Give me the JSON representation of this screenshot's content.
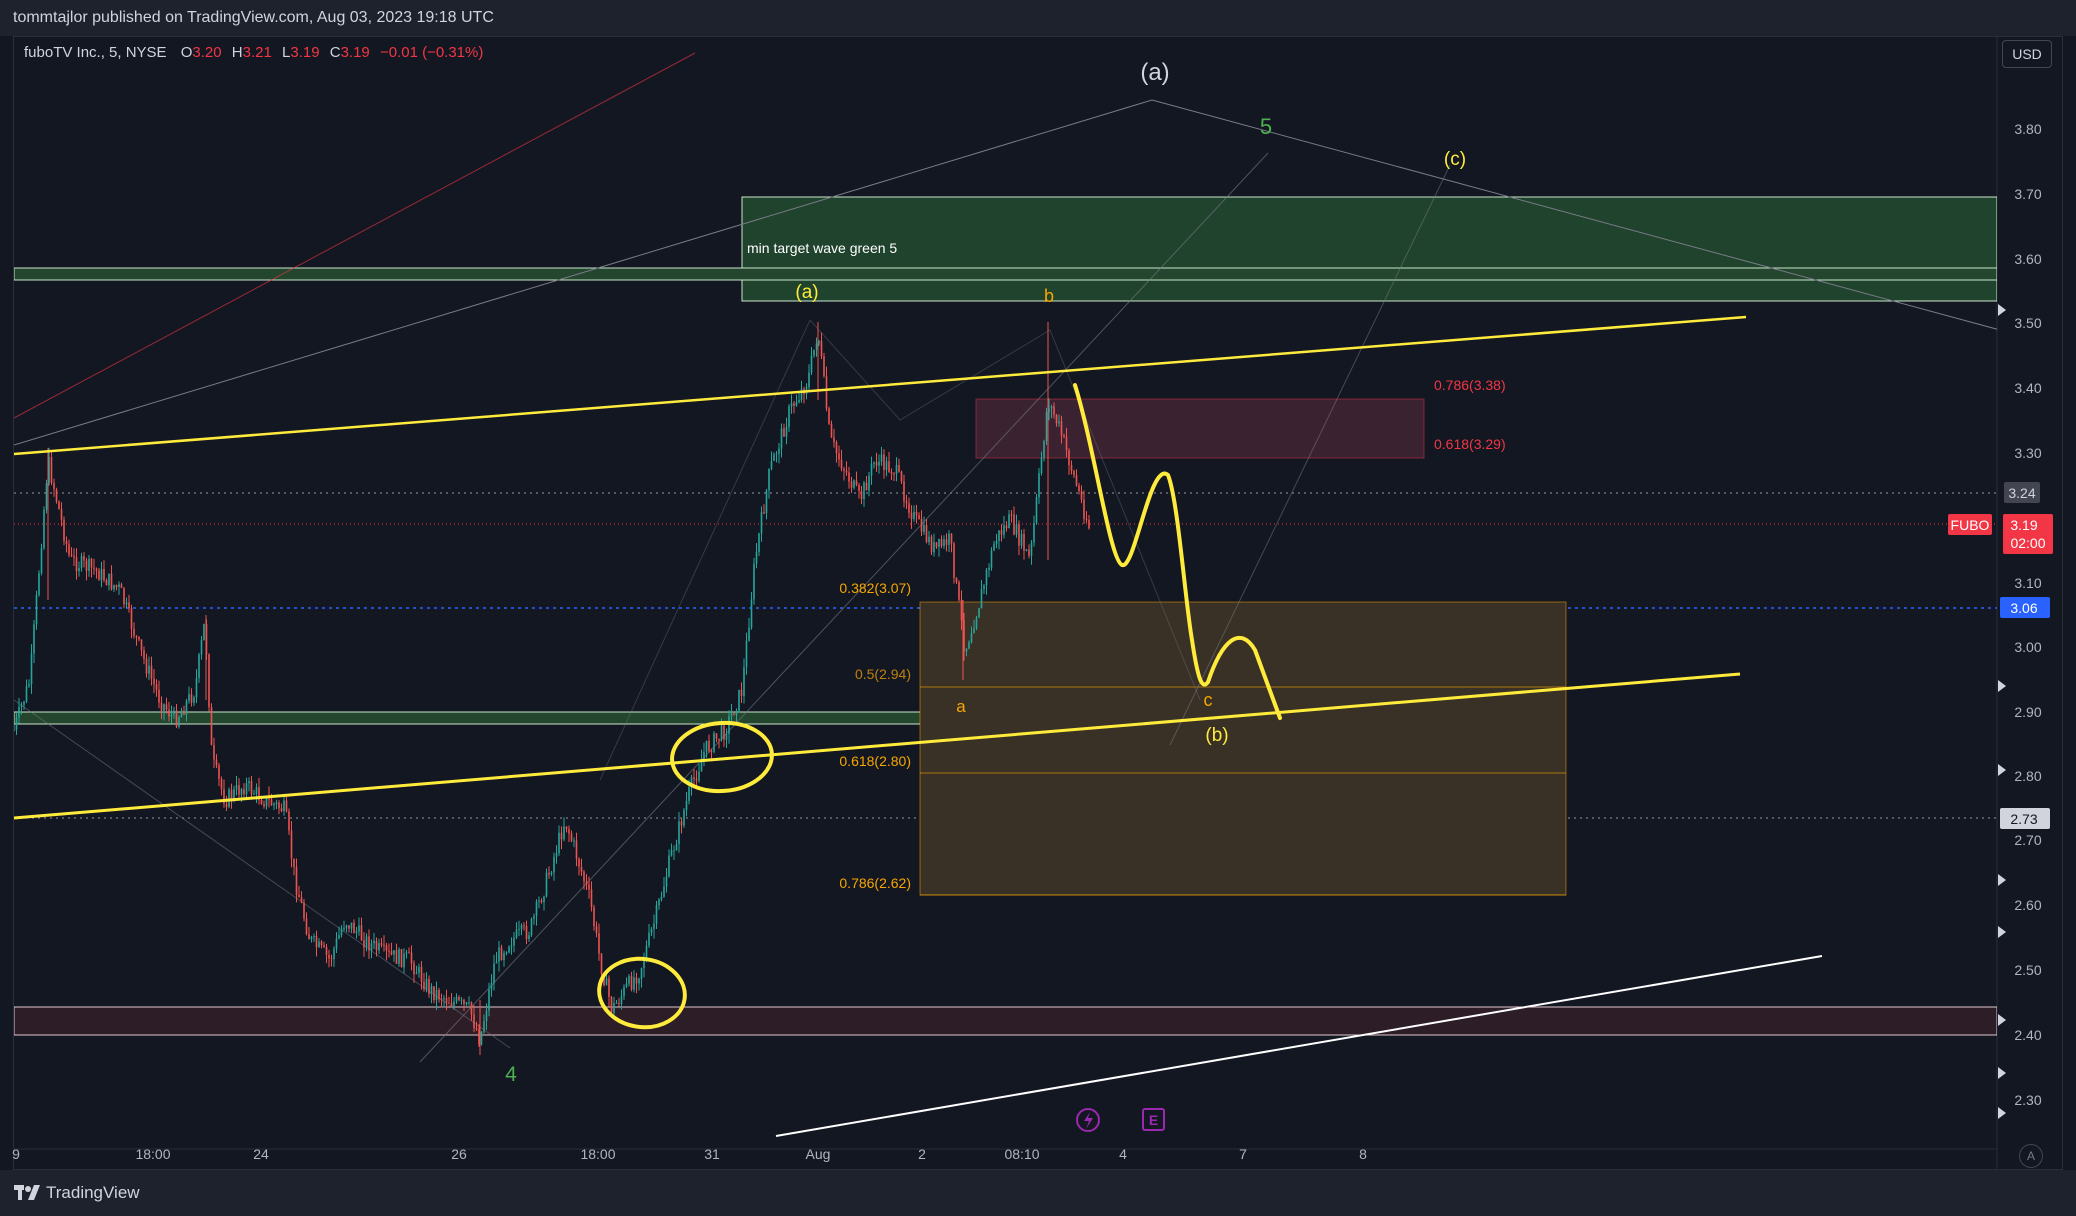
{
  "header": {
    "published_text": "tommtajlor published on TradingView.com, Aug 03, 2023 19:18 UTC"
  },
  "legend": {
    "symbol": "fuboTV Inc., 5, NYSE",
    "open_label": "O",
    "open": "3.20",
    "high_label": "H",
    "high": "3.21",
    "low_label": "L",
    "low": "3.19",
    "close_label": "C",
    "close": "3.19",
    "change": "−0.01 (−0.31%)"
  },
  "currency_button": "USD",
  "price_axis": {
    "ticks": [
      "3.80",
      "3.70",
      "3.60",
      "3.50",
      "3.40",
      "3.30",
      "3.10",
      "3.00",
      "2.90",
      "2.80",
      "2.70",
      "2.60",
      "2.50",
      "2.40",
      "2.30"
    ],
    "tags": {
      "level_324": "3.24",
      "symbol": "FUBO",
      "last_price": "3.19",
      "countdown": "02:00",
      "level_306": "3.06",
      "level_273": "2.73"
    }
  },
  "time_axis": {
    "labels": [
      "9",
      "18:00",
      "24",
      "26",
      "18:00",
      "31",
      "Aug",
      "2",
      "08:10",
      "4",
      "7",
      "8"
    ]
  },
  "annotations": {
    "wave_a_white": "(a)",
    "wave_5_green": "5",
    "wave_c_yellow": "(c)",
    "wave_a_yellow": "(a)",
    "wave_b_orange": "b",
    "wave_a_orange": "a",
    "wave_c_orange": "c",
    "wave_b_yellow": "(b)",
    "wave_4_green": "4",
    "target_box_label": "min target wave green 5"
  },
  "fib_upper": {
    "level_786": "0.786(3.38)",
    "level_618": "0.618(3.29)"
  },
  "fib_lower": {
    "level_382": "0.382(3.07)",
    "level_5": "0.5(2.94)",
    "level_618": "0.618(2.80)",
    "level_786": "0.786(2.62)"
  },
  "bottom": {
    "brand": "TradingView",
    "auto_scale_button": "A"
  },
  "colors": {
    "background": "#131722",
    "candle_up": "#26a69a",
    "candle_down": "#ef5350",
    "drawing_yellow": "#ffeb3b",
    "target_green": "#2e5e3a",
    "fib_orange": "#f7a600",
    "fib_red": "#f23645",
    "blue_line": "#2962ff"
  }
}
